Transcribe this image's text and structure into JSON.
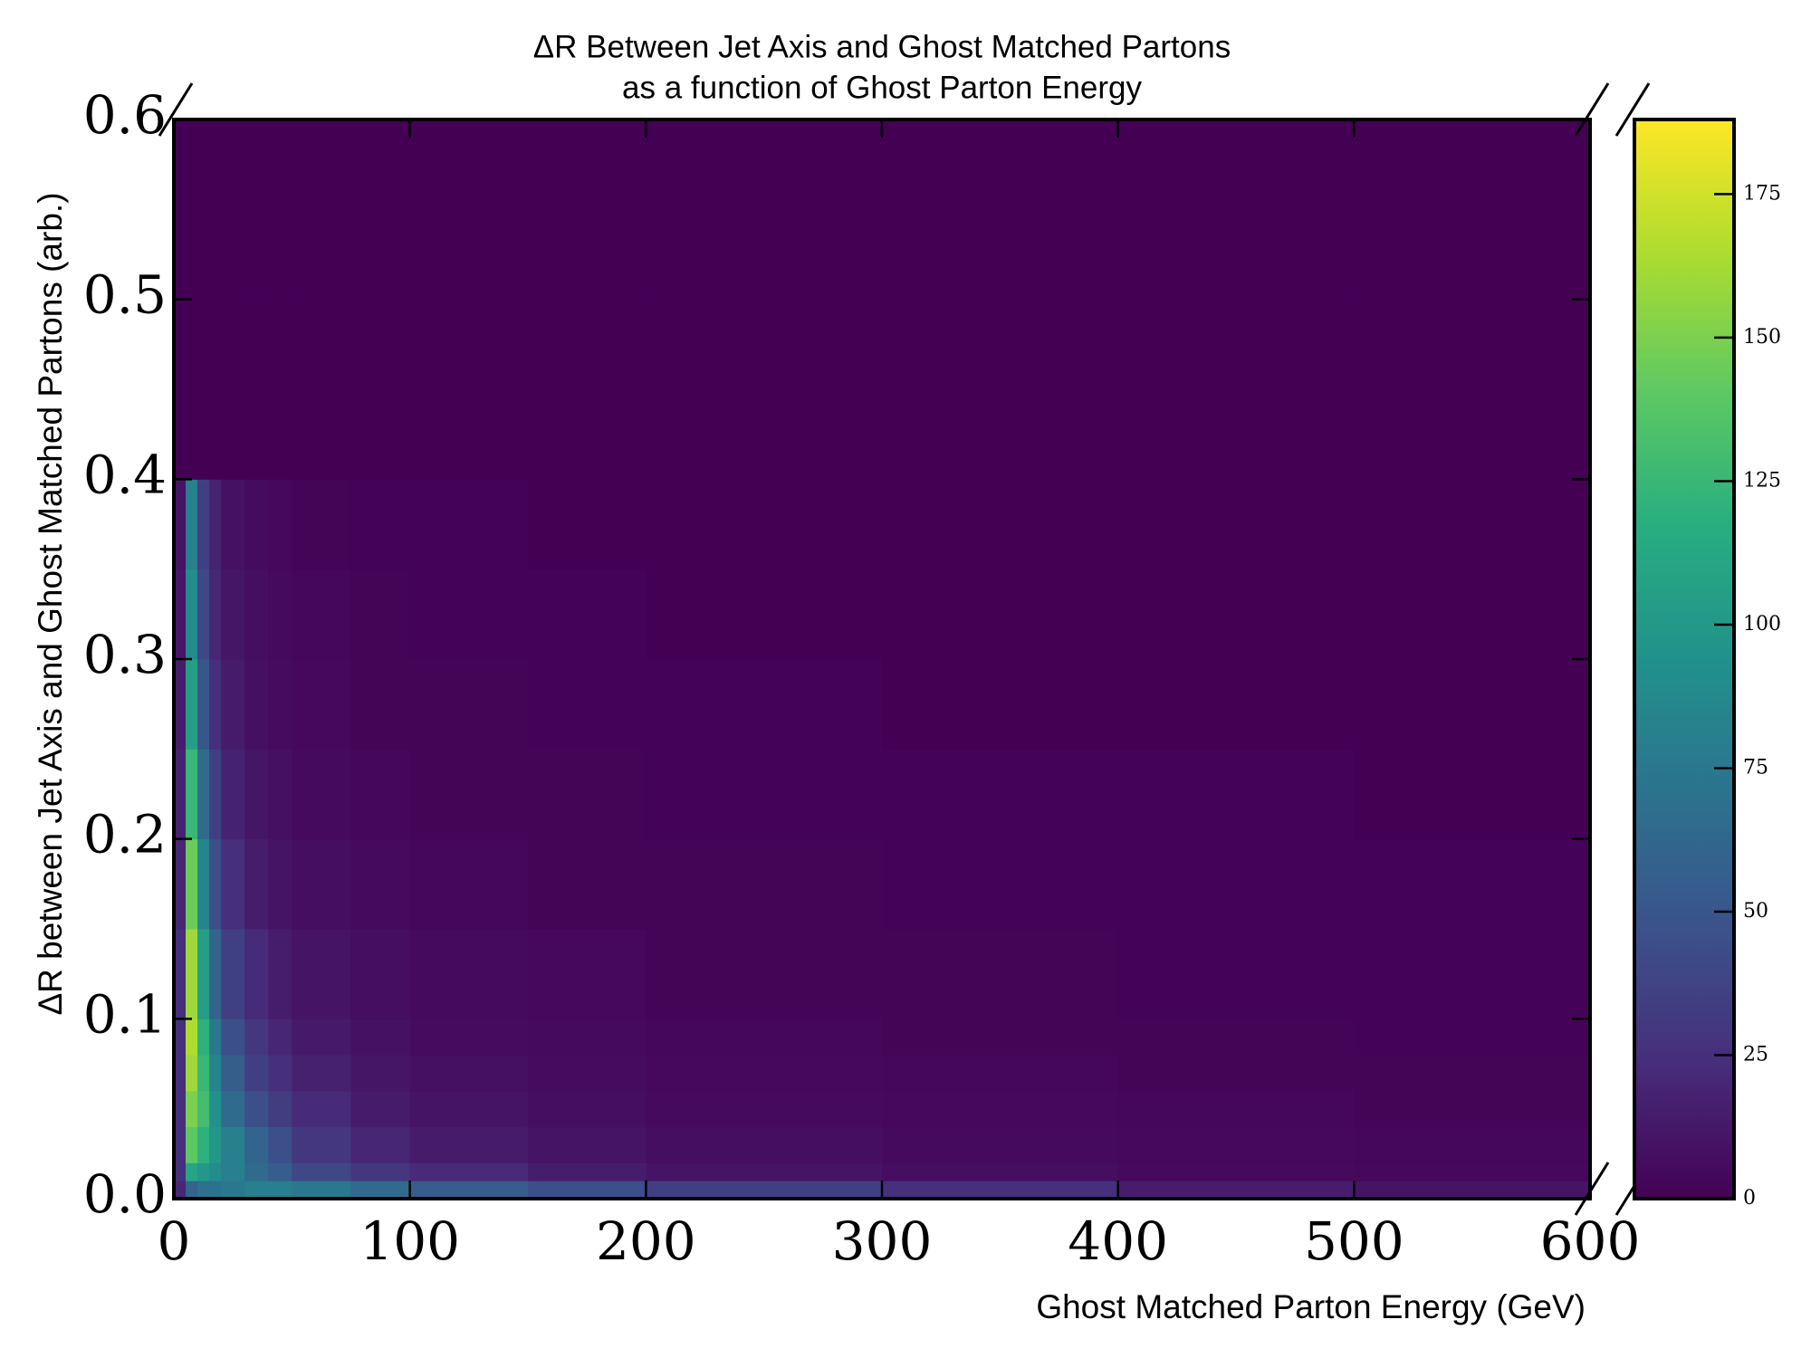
{
  "chart_data": {
    "type": "heatmap",
    "title": [
      "ΔR Between Jet Axis and Ghost Matched Partons",
      "as a function of Ghost Parton Energy"
    ],
    "xlabel": "Ghost Matched Parton Energy (GeV)",
    "ylabel": "ΔR between Jet Axis and Ghost Matched Partons (arb.)",
    "colormap": "viridis",
    "xlim": [
      0,
      600
    ],
    "xticks": [
      0,
      100,
      200,
      300,
      400,
      500,
      600
    ],
    "ylim": [
      0,
      0.6
    ],
    "yticks": [
      {
        "value": 0,
        "label": "0.0"
      },
      0.1,
      0.2,
      0.3,
      0.4,
      0.5,
      0.6
    ],
    "zlim": [
      0,
      188
    ],
    "zticks": [
      0,
      25,
      50,
      75,
      100,
      125,
      150,
      175
    ],
    "xbins": [
      0,
      5,
      10,
      15,
      20,
      30,
      40,
      50,
      75,
      100,
      150,
      200,
      300,
      400,
      500,
      600
    ],
    "ybins": [
      0,
      0.01,
      0.02,
      0.04,
      0.06,
      0.08,
      0.1,
      0.15,
      0.2,
      0.25,
      0.3,
      0.35,
      0.4,
      0.45,
      0.5,
      0.6
    ],
    "z": [
      [
        20,
        60,
        70,
        70,
        75,
        80,
        80,
        75,
        65,
        55,
        45,
        35,
        25,
        15,
        10
      ],
      [
        25,
        110,
        100,
        90,
        80,
        65,
        55,
        40,
        30,
        22,
        15,
        10,
        7,
        5,
        4
      ],
      [
        25,
        140,
        120,
        100,
        80,
        60,
        45,
        30,
        20,
        14,
        10,
        7,
        5,
        4,
        3
      ],
      [
        25,
        150,
        130,
        95,
        65,
        45,
        33,
        22,
        14,
        10,
        7,
        5,
        4,
        3,
        2
      ],
      [
        25,
        160,
        125,
        85,
        55,
        35,
        25,
        17,
        11,
        8,
        6,
        4,
        3,
        2,
        2
      ],
      [
        25,
        165,
        120,
        75,
        45,
        30,
        20,
        13,
        9,
        6,
        5,
        3,
        2,
        2,
        1
      ],
      [
        25,
        160,
        105,
        60,
        35,
        22,
        15,
        10,
        7,
        5,
        4,
        2,
        2,
        1,
        1
      ],
      [
        20,
        145,
        85,
        45,
        25,
        15,
        10,
        7,
        5,
        3,
        2,
        2,
        1,
        1,
        1
      ],
      [
        18,
        125,
        65,
        35,
        18,
        11,
        8,
        5,
        3,
        2,
        2,
        1,
        1,
        1,
        0
      ],
      [
        15,
        105,
        50,
        25,
        14,
        8,
        6,
        4,
        2,
        2,
        1,
        1,
        0,
        0,
        0
      ],
      [
        12,
        90,
        40,
        20,
        11,
        7,
        5,
        3,
        2,
        1,
        1,
        0,
        0,
        0,
        0
      ],
      [
        10,
        80,
        35,
        18,
        9,
        6,
        4,
        2,
        1,
        1,
        0,
        0,
        0,
        0,
        0
      ],
      [
        0,
        0,
        0,
        0,
        0,
        0,
        0,
        0,
        0,
        0,
        0,
        0,
        0,
        0,
        0
      ],
      [
        0,
        0,
        0,
        0,
        0,
        0,
        0,
        0,
        0,
        0,
        0,
        0,
        0,
        0,
        0
      ],
      [
        0,
        0,
        0,
        0,
        0,
        0,
        0,
        0,
        0,
        0,
        0,
        0,
        0,
        0,
        0
      ]
    ]
  }
}
